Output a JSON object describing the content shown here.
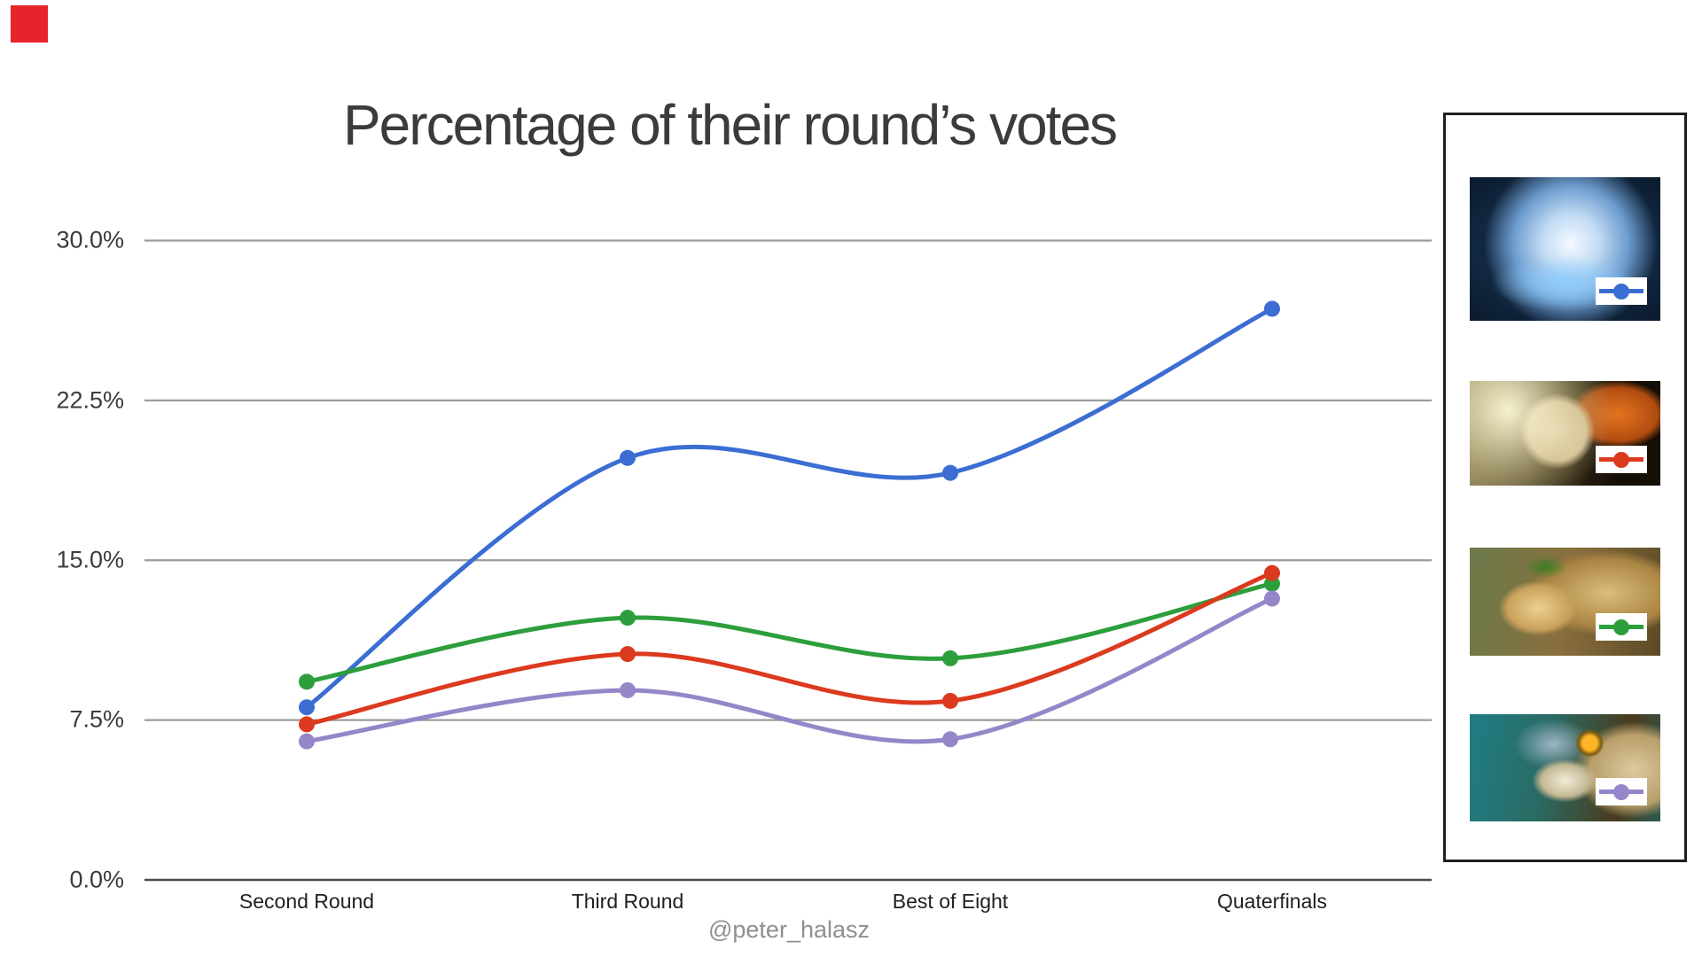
{
  "page": {
    "background": "#ffffff"
  },
  "decoration": {
    "red_square_color": "#e7242b"
  },
  "header": {
    "title": "Percentage of their round’s votes"
  },
  "footer": {
    "attribution": "@peter_halasz"
  },
  "chart_data": {
    "type": "line",
    "title": "Percentage of their round’s votes",
    "curve": "smooth",
    "grid": true,
    "legend_position": "right",
    "xlabel": "",
    "ylabel": "",
    "ylim": [
      0,
      30
    ],
    "y_ticks": [
      "30.0%",
      "22.5%",
      "15.0%",
      "7.5%",
      "0.0%"
    ],
    "y_tick_values": [
      30,
      22.5,
      15,
      7.5,
      0
    ],
    "categories": [
      "Second Round",
      "Third Round",
      "Best of Eight",
      "Quaterfinals"
    ],
    "series": [
      {
        "name": "io",
        "icon": "io-hero-image",
        "color": "#3b6dd3",
        "values": [
          8.1,
          19.8,
          19.1,
          26.8
        ]
      },
      {
        "name": "pudge",
        "icon": "pudge-hero-image",
        "color": "#2d9e3c",
        "values": [
          9.3,
          12.3,
          10.4,
          13.9
        ]
      },
      {
        "name": "juggernaut",
        "icon": "juggernaut-hero-image",
        "color": "#dc3a1e",
        "values": [
          7.3,
          10.6,
          8.4,
          14.4
        ]
      },
      {
        "name": "slark",
        "icon": "slark-hero-image",
        "color": "#9586c9",
        "values": [
          6.5,
          8.9,
          6.6,
          13.2
        ]
      }
    ],
    "gridline_color": "#9b9b9b",
    "baseline_color": "#4a4a4a"
  },
  "legend": {
    "items": [
      {
        "icon": "io-hero-image",
        "series": "io",
        "color": "#3b6dd3"
      },
      {
        "icon": "juggernaut-hero-image",
        "series": "juggernaut",
        "color": "#dc3a1e"
      },
      {
        "icon": "pudge-hero-image",
        "series": "pudge",
        "color": "#2d9e3c"
      },
      {
        "icon": "slark-hero-image",
        "series": "slark",
        "color": "#9586c9"
      }
    ]
  }
}
